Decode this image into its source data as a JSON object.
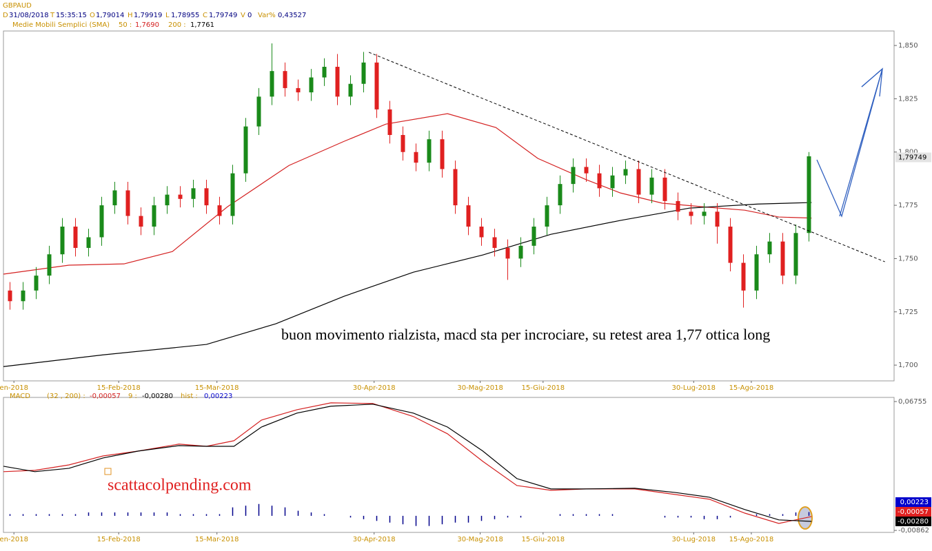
{
  "header": {
    "symbol": "GBPAUD",
    "d_key": "D",
    "date": "31/08/2018",
    "t_key": "T",
    "time": "15:35:15",
    "o_key": "O",
    "open": "1,79014",
    "h_key": "H",
    "high": "1,79919",
    "l_key": "L",
    "low": "1,78955",
    "c_key": "C",
    "close": "1,79749",
    "v_key": "V",
    "volume": "0",
    "var_key": "Var%",
    "var": "0,43527",
    "sma_title": "Medie Mobili Semplici (SMA)",
    "sma1_key": "50 :",
    "sma1": "1,7690",
    "sma2_key": "200 :",
    "sma2": "1,7761"
  },
  "chart_data": [
    {
      "type": "candlestick",
      "xlim": [
        -0.5,
        67.5
      ],
      "ylim": [
        1.6926,
        1.8568
      ],
      "yticks": [
        {
          "value": 1.7,
          "label": "1,700"
        },
        {
          "value": 1.725,
          "label": "1,725"
        },
        {
          "value": 1.75,
          "label": "1,750"
        },
        {
          "value": 1.775,
          "label": "1,775"
        },
        {
          "value": 1.8,
          "label": "1,800"
        },
        {
          "value": 1.825,
          "label": "1,825"
        },
        {
          "value": 1.85,
          "label": "1,850"
        }
      ],
      "xticks": [
        {
          "value": 0.3,
          "label": "en-2018"
        },
        {
          "value": 8.3,
          "label": "15-Feb-2018"
        },
        {
          "value": 15.8,
          "label": "15-Mar-2018"
        },
        {
          "value": 27.8,
          "label": "30-Apr-2018"
        },
        {
          "value": 35.9,
          "label": "30-Mag-2018"
        },
        {
          "value": 40.7,
          "label": "15-Giu-2018"
        },
        {
          "value": 52.2,
          "label": "30-Lug-2018"
        },
        {
          "value": 56.6,
          "label": "15-Ago-2018"
        }
      ],
      "up_color": "#1a8a1a",
      "down_color": "#e02020",
      "x": [
        0,
        1,
        2,
        3,
        4,
        5,
        6,
        7,
        8,
        9,
        10,
        11,
        12,
        13,
        14,
        15,
        16,
        17,
        18,
        19,
        20,
        21,
        22,
        23,
        24,
        25,
        26,
        27,
        28,
        29,
        30,
        31,
        32,
        33,
        34,
        35,
        36,
        37,
        38,
        39,
        40,
        41,
        42,
        43,
        44,
        45,
        46,
        47,
        48,
        49,
        50,
        51,
        52,
        53,
        54,
        55,
        56,
        57,
        58,
        59,
        60,
        61
      ],
      "open": [
        1.735,
        1.73,
        1.735,
        1.742,
        1.752,
        1.765,
        1.755,
        1.76,
        1.775,
        1.782,
        1.77,
        1.765,
        1.775,
        1.78,
        1.778,
        1.783,
        1.775,
        1.77,
        1.79,
        1.812,
        1.826,
        1.838,
        1.83,
        1.828,
        1.835,
        1.84,
        1.826,
        1.832,
        1.842,
        1.82,
        1.808,
        1.8,
        1.795,
        1.806,
        1.792,
        1.775,
        1.765,
        1.76,
        1.755,
        1.75,
        1.756,
        1.765,
        1.775,
        1.785,
        1.793,
        1.79,
        1.783,
        1.789,
        1.792,
        1.78,
        1.788,
        1.777,
        1.772,
        1.77,
        1.772,
        1.765,
        1.748,
        1.735,
        1.752,
        1.758,
        1.742,
        1.762
      ],
      "high": [
        1.739,
        1.739,
        1.746,
        1.756,
        1.769,
        1.769,
        1.764,
        1.779,
        1.786,
        1.786,
        1.774,
        1.779,
        1.784,
        1.784,
        1.787,
        1.787,
        1.779,
        1.794,
        1.816,
        1.83,
        1.851,
        1.842,
        1.834,
        1.839,
        1.844,
        1.846,
        1.836,
        1.847,
        1.846,
        1.824,
        1.812,
        1.804,
        1.81,
        1.81,
        1.796,
        1.779,
        1.769,
        1.764,
        1.759,
        1.76,
        1.769,
        1.779,
        1.789,
        1.797,
        1.797,
        1.794,
        1.793,
        1.796,
        1.796,
        1.792,
        1.792,
        1.781,
        1.776,
        1.776,
        1.776,
        1.769,
        1.752,
        1.756,
        1.762,
        1.762,
        1.766,
        1.8
      ],
      "low": [
        1.726,
        1.726,
        1.731,
        1.738,
        1.748,
        1.751,
        1.751,
        1.756,
        1.771,
        1.766,
        1.761,
        1.761,
        1.771,
        1.774,
        1.774,
        1.771,
        1.766,
        1.766,
        1.786,
        1.808,
        1.822,
        1.826,
        1.824,
        1.824,
        1.831,
        1.822,
        1.822,
        1.828,
        1.816,
        1.804,
        1.796,
        1.791,
        1.791,
        1.788,
        1.771,
        1.761,
        1.756,
        1.751,
        1.74,
        1.746,
        1.752,
        1.761,
        1.771,
        1.781,
        1.786,
        1.779,
        1.779,
        1.785,
        1.776,
        1.776,
        1.773,
        1.768,
        1.766,
        1.766,
        1.757,
        1.744,
        1.727,
        1.731,
        1.748,
        1.738,
        1.738,
        1.758
      ],
      "close": [
        1.73,
        1.735,
        1.742,
        1.752,
        1.765,
        1.755,
        1.76,
        1.775,
        1.782,
        1.77,
        1.765,
        1.775,
        1.78,
        1.778,
        1.783,
        1.775,
        1.77,
        1.79,
        1.812,
        1.826,
        1.838,
        1.83,
        1.828,
        1.835,
        1.84,
        1.826,
        1.832,
        1.842,
        1.82,
        1.808,
        1.8,
        1.795,
        1.806,
        1.792,
        1.775,
        1.765,
        1.76,
        1.755,
        1.75,
        1.756,
        1.765,
        1.775,
        1.785,
        1.793,
        1.79,
        1.783,
        1.789,
        1.792,
        1.78,
        1.788,
        1.777,
        1.772,
        1.77,
        1.772,
        1.765,
        1.748,
        1.735,
        1.752,
        1.758,
        1.742,
        1.762,
        1.798
      ],
      "lines": [
        {
          "color": "#d42020",
          "x": [
            -0.5,
            4.5,
            8.7,
            12.4,
            16.6,
            21.3,
            25.5,
            28.7,
            33.4,
            37.1,
            40.3,
            44,
            46.6,
            49.8,
            52.9,
            56.1,
            58.7,
            61.2
          ],
          "values": [
            1.7427,
            1.7469,
            1.7475,
            1.7533,
            1.7743,
            1.7937,
            1.805,
            1.8131,
            1.818,
            1.8115,
            1.797,
            1.787,
            1.7808,
            1.776,
            1.7743,
            1.7727,
            1.7695,
            1.769
          ]
        },
        {
          "color": "#000000",
          "x": [
            -0.5,
            7.1,
            15.0,
            20.3,
            25.5,
            30.8,
            36.1,
            41.3,
            46.6,
            51.9,
            57.1,
            61.2
          ],
          "values": [
            1.6993,
            1.7048,
            1.7097,
            1.7194,
            1.7323,
            1.7436,
            1.7517,
            1.7614,
            1.7679,
            1.7737,
            1.7756,
            1.7763
          ]
        }
      ],
      "trendline": {
        "x": [
          27.4,
          66.8
        ],
        "values": [
          1.8468,
          1.7485
        ]
      },
      "last_value": {
        "value": 1.79749,
        "label": "1,79749"
      },
      "annotation": "buon movimento rialzista, macd sta per incrociare, su retest area 1,77 ottica long"
    },
    {
      "type": "macd",
      "title": "MACD",
      "params": "(32 , 200) :",
      "macd_value": "-0,00057",
      "signal_key": "9 :",
      "signal_value": "-0,00280",
      "hist_key": "hist :",
      "hist_value": "0,00223",
      "xlim": [
        -0.5,
        67.5
      ],
      "ylim": [
        -0.0098,
        0.07
      ],
      "yticks": [
        {
          "value": 0.06755,
          "label": "0,06755"
        },
        {
          "value": -0.00862,
          "label": "-0,00862"
        }
      ],
      "xticks": [
        {
          "value": 0.3,
          "label": "en-2018"
        },
        {
          "value": 8.3,
          "label": "15-Feb-2018"
        },
        {
          "value": 15.8,
          "label": "15-Mar-2018"
        },
        {
          "value": 27.8,
          "label": "30-Apr-2018"
        },
        {
          "value": 35.9,
          "label": "30-Mag-2018"
        },
        {
          "value": 40.7,
          "label": "15-Giu-2018"
        },
        {
          "value": 52.2,
          "label": "30-Lug-2018"
        },
        {
          "value": 56.6,
          "label": "15-Ago-2018"
        }
      ],
      "series": [
        {
          "color": "#d42020",
          "x": [
            -0.5,
            1.9,
            4.5,
            7.1,
            9.8,
            12.9,
            15.0,
            17.1,
            19.2,
            21.9,
            24.5,
            27.7,
            30.8,
            33.4,
            36.1,
            38.7,
            41.3,
            44,
            47.7,
            50.8,
            53.4,
            56.1,
            58.7,
            61.2
          ],
          "values": [
            0.0261,
            0.0269,
            0.0301,
            0.0354,
            0.0383,
            0.0424,
            0.0411,
            0.0444,
            0.0566,
            0.0627,
            0.0668,
            0.0664,
            0.0587,
            0.0485,
            0.0322,
            0.0179,
            0.0151,
            0.0159,
            0.0159,
            0.0126,
            0.0098,
            0.0016,
            -0.0045,
            -0.0004
          ]
        },
        {
          "color": "#000000",
          "x": [
            -0.5,
            1.9,
            4.5,
            7.1,
            9.8,
            12.9,
            15.0,
            17.1,
            19.2,
            21.9,
            24.5,
            27.7,
            30.8,
            33.4,
            36.1,
            38.7,
            41.3,
            44,
            47.7,
            50.8,
            53.4,
            56.1,
            58.7,
            61.2
          ],
          "values": [
            0.0293,
            0.0261,
            0.0281,
            0.0342,
            0.0383,
            0.0415,
            0.0411,
            0.0411,
            0.0525,
            0.0607,
            0.0648,
            0.066,
            0.0607,
            0.0525,
            0.0383,
            0.022,
            0.0159,
            0.0159,
            0.0163,
            0.0138,
            0.011,
            0.0037,
            -0.0024,
            -0.0033
          ]
        }
      ],
      "hist_color": "#00008b",
      "hist": [
        0.001,
        0.001,
        0.001,
        0.001,
        0.001,
        0.001,
        0.002,
        0.002,
        0.002,
        0.002,
        0.002,
        0.002,
        0.002,
        0.001,
        0.001,
        0.001,
        0.001,
        0.005,
        0.006,
        0.007,
        0.006,
        0.005,
        0.003,
        0.002,
        0.001,
        0,
        -0.001,
        -0.002,
        -0.003,
        -0.004,
        -0.005,
        -0.006,
        -0.006,
        -0.005,
        -0.004,
        -0.004,
        -0.003,
        -0.002,
        -0.001,
        -0.001,
        0,
        0,
        0.001,
        0.001,
        0.001,
        0.001,
        0.001,
        0,
        0,
        0,
        -0.001,
        -0.001,
        -0.001,
        -0.002,
        -0.002,
        -0.001,
        0,
        0.001,
        0.001,
        0.001,
        0.002,
        0.00223
      ],
      "value_boxes": [
        {
          "value": 0.00223,
          "label": "0,00223",
          "color": "#0000cc"
        },
        {
          "value": -0.00057,
          "label": "-0,00057",
          "color": "#e02020"
        },
        {
          "value": -0.0028,
          "label": "-0,00280",
          "color": "#000000"
        }
      ]
    }
  ],
  "watermark": "scattacolpending.com"
}
